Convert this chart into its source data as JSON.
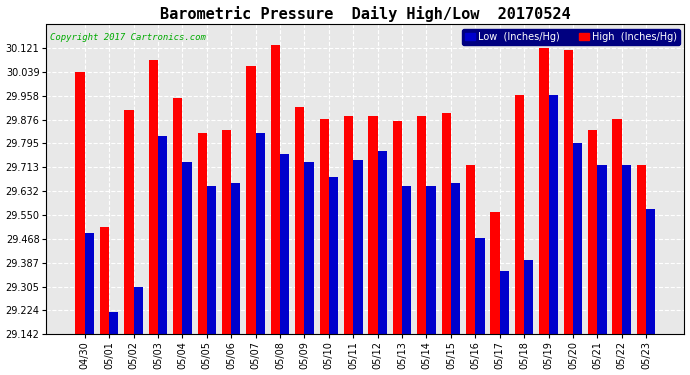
{
  "title": "Barometric Pressure  Daily High/Low  20170524",
  "copyright": "Copyright 2017 Cartronics.com",
  "legend_low": "Low  (Inches/Hg)",
  "legend_high": "High  (Inches/Hg)",
  "dates": [
    "04/30",
    "05/01",
    "05/02",
    "05/03",
    "05/04",
    "05/05",
    "05/06",
    "05/07",
    "05/08",
    "05/09",
    "05/10",
    "05/11",
    "05/12",
    "05/13",
    "05/14",
    "05/15",
    "05/16",
    "05/17",
    "05/18",
    "05/19",
    "05/20",
    "05/21",
    "05/22",
    "05/23"
  ],
  "low_values": [
    29.49,
    29.22,
    29.305,
    29.82,
    29.73,
    29.65,
    29.66,
    29.83,
    29.76,
    29.73,
    29.68,
    29.74,
    29.77,
    29.65,
    29.65,
    29.66,
    29.47,
    29.36,
    29.395,
    29.96,
    29.795,
    29.72,
    29.72,
    29.57
  ],
  "high_values": [
    30.04,
    29.51,
    29.91,
    30.08,
    29.95,
    29.83,
    29.84,
    30.06,
    30.13,
    29.92,
    29.88,
    29.89,
    29.89,
    29.87,
    29.89,
    29.9,
    29.72,
    29.56,
    29.96,
    30.12,
    30.115,
    29.84,
    29.88,
    29.72
  ],
  "ylim_min": 29.142,
  "ylim_max": 30.203,
  "yticks": [
    29.142,
    29.224,
    29.305,
    29.387,
    29.468,
    29.55,
    29.632,
    29.713,
    29.795,
    29.876,
    29.958,
    30.039,
    30.121
  ],
  "bar_width": 0.38,
  "bg_color": "#ffffff",
  "plot_bg_color": "#e8e8e8",
  "grid_color": "#ffffff",
  "low_color": "#0000cc",
  "high_color": "#ff0000",
  "title_fontsize": 11,
  "tick_fontsize": 7,
  "label_fontsize": 7
}
